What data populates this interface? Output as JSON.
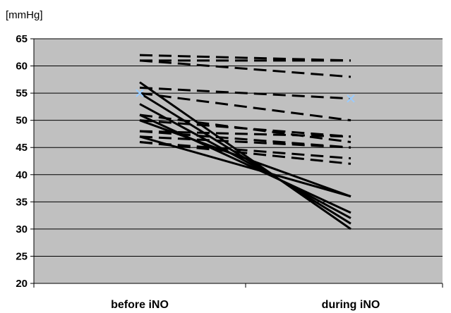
{
  "chart_data": {
    "type": "line",
    "title": "",
    "ylabel": "[mmHg]",
    "xlabel": "",
    "categories": [
      "before iNO",
      "during iNO"
    ],
    "ylim": [
      20,
      65
    ],
    "yticks": [
      "20",
      "25",
      "30",
      "35",
      "40",
      "45",
      "50",
      "55",
      "60",
      "65"
    ],
    "grid": true,
    "legend": "none",
    "colors": {
      "plot_bg": "#c0c0c0",
      "line": "#000000",
      "mean_marker": "#99ccff",
      "grid": "#000000"
    },
    "series_solid": [
      {
        "values": [
          57,
          30
        ]
      },
      {
        "values": [
          55,
          31
        ]
      },
      {
        "values": [
          53,
          32
        ]
      },
      {
        "values": [
          51,
          33
        ]
      },
      {
        "values": [
          50,
          36
        ]
      },
      {
        "values": [
          47,
          36
        ]
      }
    ],
    "series_dashed": [
      {
        "values": [
          62,
          61
        ]
      },
      {
        "values": [
          61,
          61
        ]
      },
      {
        "values": [
          61,
          58
        ]
      },
      {
        "values": [
          56,
          54
        ]
      },
      {
        "values": [
          55,
          50
        ]
      },
      {
        "values": [
          51,
          46
        ]
      },
      {
        "values": [
          50,
          47
        ]
      },
      {
        "values": [
          48,
          47
        ]
      },
      {
        "values": [
          48,
          45
        ]
      },
      {
        "values": [
          47,
          45
        ]
      },
      {
        "values": [
          46,
          42
        ]
      },
      {
        "values": [
          46,
          43
        ]
      }
    ],
    "mean_markers": [
      {
        "values": [
          55,
          54
        ]
      }
    ]
  }
}
